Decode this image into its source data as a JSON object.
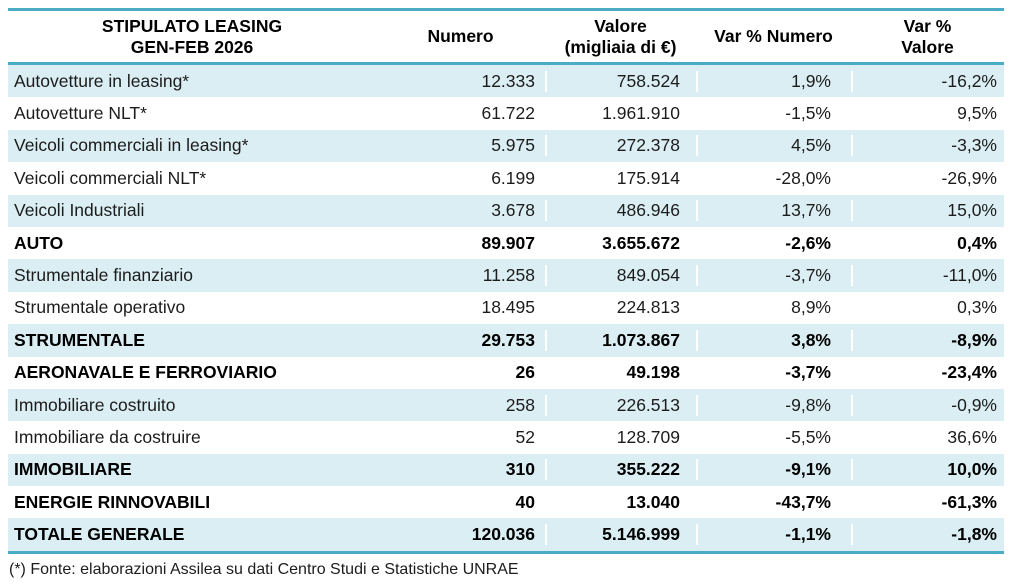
{
  "header": {
    "col1_line1": "STIPULATO LEASING",
    "col1_line2": "GEN-FEB 2026",
    "col2": "Numero",
    "col3_line1": "Valore",
    "col3_line2": "(migliaia di €)",
    "col4": "Var % Numero",
    "col5_line1": "Var %",
    "col5_line2": "Valore"
  },
  "footnote": "(*) Fonte: elaborazioni Assilea su dati Centro Studi e Statistiche UNRAE",
  "colors": {
    "border_teal": "#4bacc6",
    "stripe_blue": "#daeef3",
    "text": "#1c1c1c"
  },
  "chart_data": {
    "type": "table",
    "title": "STIPULATO LEASING GEN-FEB 2026",
    "columns": [
      "STIPULATO LEASING GEN-FEB 2026",
      "Numero",
      "Valore (migliaia di €)",
      "Var % Numero",
      "Var % Valore"
    ],
    "rows": [
      {
        "label": "Autovetture in leasing*",
        "numero": "12.333",
        "valore": "758.524",
        "var_numero": "1,9%",
        "var_valore": "-16,2%",
        "bold": false
      },
      {
        "label": "Autovetture NLT*",
        "numero": "61.722",
        "valore": "1.961.910",
        "var_numero": "-1,5%",
        "var_valore": "9,5%",
        "bold": false
      },
      {
        "label": "Veicoli commerciali in leasing*",
        "numero": "5.975",
        "valore": "272.378",
        "var_numero": "4,5%",
        "var_valore": "-3,3%",
        "bold": false
      },
      {
        "label": "Veicoli commerciali NLT*",
        "numero": "6.199",
        "valore": "175.914",
        "var_numero": "-28,0%",
        "var_valore": "-26,9%",
        "bold": false
      },
      {
        "label": "Veicoli Industriali",
        "numero": "3.678",
        "valore": "486.946",
        "var_numero": "13,7%",
        "var_valore": "15,0%",
        "bold": false
      },
      {
        "label": "AUTO",
        "numero": "89.907",
        "valore": "3.655.672",
        "var_numero": "-2,6%",
        "var_valore": "0,4%",
        "bold": true
      },
      {
        "label": "Strumentale finanziario",
        "numero": "11.258",
        "valore": "849.054",
        "var_numero": "-3,7%",
        "var_valore": "-11,0%",
        "bold": false
      },
      {
        "label": "Strumentale operativo",
        "numero": "18.495",
        "valore": "224.813",
        "var_numero": "8,9%",
        "var_valore": "0,3%",
        "bold": false
      },
      {
        "label": "STRUMENTALE",
        "numero": "29.753",
        "valore": "1.073.867",
        "var_numero": "3,8%",
        "var_valore": "-8,9%",
        "bold": true
      },
      {
        "label": "AERONAVALE E FERROVIARIO",
        "numero": "26",
        "valore": "49.198",
        "var_numero": "-3,7%",
        "var_valore": "-23,4%",
        "bold": true
      },
      {
        "label": "Immobiliare costruito",
        "numero": "258",
        "valore": "226.513",
        "var_numero": "-9,8%",
        "var_valore": "-0,9%",
        "bold": false
      },
      {
        "label": "Immobiliare da costruire",
        "numero": "52",
        "valore": "128.709",
        "var_numero": "-5,5%",
        "var_valore": "36,6%",
        "bold": false
      },
      {
        "label": "IMMOBILIARE",
        "numero": "310",
        "valore": "355.222",
        "var_numero": "-9,1%",
        "var_valore": "10,0%",
        "bold": true
      },
      {
        "label": "ENERGIE RINNOVABILI",
        "numero": "40",
        "valore": "13.040",
        "var_numero": "-43,7%",
        "var_valore": "-61,3%",
        "bold": true
      },
      {
        "label": "TOTALE GENERALE",
        "numero": "120.036",
        "valore": "5.146.999",
        "var_numero": "-1,1%",
        "var_valore": "-1,8%",
        "bold": true
      }
    ]
  }
}
